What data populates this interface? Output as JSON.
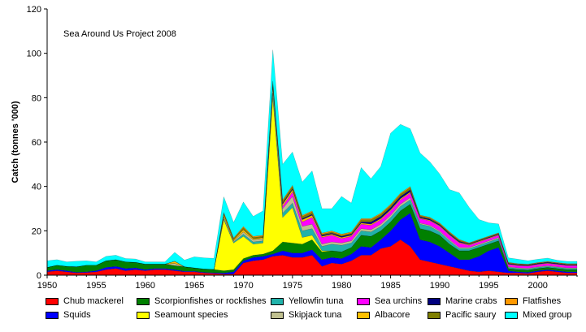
{
  "chart_data": {
    "type": "area",
    "stacked": true,
    "annotation": "Sea Around Us Project 2008",
    "ylabel": "Catch (tonnes '000)",
    "xlabel": "",
    "xlim": [
      1950,
      2004
    ],
    "ylim": [
      0,
      120
    ],
    "x_ticks": [
      1950,
      1955,
      1960,
      1965,
      1970,
      1975,
      1980,
      1985,
      1990,
      1995,
      2000
    ],
    "y_ticks": [
      0,
      20,
      40,
      60,
      80,
      100,
      120
    ],
    "grid": false,
    "legend_position": "bottom",
    "x": [
      1950,
      1951,
      1952,
      1953,
      1954,
      1955,
      1956,
      1957,
      1958,
      1959,
      1960,
      1961,
      1962,
      1963,
      1964,
      1965,
      1966,
      1967,
      1968,
      1969,
      1970,
      1971,
      1972,
      1973,
      1974,
      1975,
      1976,
      1977,
      1978,
      1979,
      1980,
      1981,
      1982,
      1983,
      1984,
      1985,
      1986,
      1987,
      1988,
      1989,
      1990,
      1991,
      1992,
      1993,
      1994,
      1995,
      1996,
      1997,
      1998,
      1999,
      2000,
      2001,
      2002,
      2003,
      2004
    ],
    "series": [
      {
        "name": "Chub mackerel",
        "color": "#ff0000",
        "values": [
          1.5,
          2,
          1.5,
          1,
          1.2,
          1.5,
          2.5,
          3,
          2,
          2.5,
          2,
          2.5,
          2.5,
          2,
          1.5,
          1.5,
          1,
          0.8,
          0.5,
          0.5,
          5.5,
          6.5,
          7,
          8.5,
          9,
          8,
          8,
          9,
          4,
          5.5,
          5,
          6.5,
          9,
          9,
          12,
          13,
          16,
          13,
          7,
          6,
          5,
          4,
          3,
          2,
          1.5,
          2,
          1.5,
          1,
          1,
          0.8,
          1.5,
          2,
          1.5,
          1,
          1
        ]
      },
      {
        "name": "Squids",
        "color": "#0000ff",
        "values": [
          0.5,
          0.5,
          0.5,
          0.3,
          0.3,
          0.5,
          1,
          1,
          1,
          0.8,
          0.5,
          0.5,
          0.5,
          0.5,
          0.3,
          0.3,
          0.3,
          0.3,
          0.5,
          1,
          1,
          1.5,
          1.5,
          1,
          2,
          2,
          2,
          2.5,
          3,
          2.5,
          2.5,
          3,
          4,
          3.5,
          4,
          7,
          9,
          15,
          9,
          9,
          8,
          6,
          4,
          5,
          7,
          9,
          11,
          1,
          0.5,
          0.5,
          0.5,
          0.5,
          0.5,
          0.5,
          0.5
        ]
      },
      {
        "name": "Scorpionfishes or rockfishes",
        "color": "#008000",
        "values": [
          1.5,
          2,
          2,
          2.5,
          3,
          2.5,
          3,
          3,
          3,
          2.5,
          2.5,
          2,
          2,
          1.8,
          2,
          1.5,
          1.5,
          1.5,
          1,
          1,
          1,
          1,
          1,
          1.5,
          4,
          4.5,
          4,
          4.5,
          3.5,
          3,
          3,
          3,
          5,
          5,
          4,
          4,
          4,
          4,
          5,
          5,
          5,
          4,
          4,
          4,
          4,
          3,
          3,
          1,
          1,
          1,
          1,
          1,
          1,
          1,
          1
        ]
      },
      {
        "name": "Seamount species",
        "color": "#ffff00",
        "values": [
          0,
          0,
          0,
          0,
          0,
          0,
          0,
          0,
          0,
          0,
          0,
          0,
          0,
          0,
          0,
          0,
          0,
          0,
          23,
          12,
          10,
          5,
          5,
          69,
          11,
          16,
          3,
          2,
          0.5,
          0,
          0,
          0,
          0,
          0,
          0,
          0,
          0,
          0,
          0,
          0,
          0,
          0,
          0,
          0,
          0,
          0,
          0,
          0,
          0,
          0,
          0,
          0,
          0,
          0,
          0
        ]
      },
      {
        "name": "Yellowfin tuna",
        "color": "#20b2aa",
        "values": [
          0,
          0,
          0,
          0,
          0,
          0,
          0,
          0,
          0,
          0,
          0,
          0,
          0,
          0,
          0,
          0,
          0,
          0,
          0.5,
          0.5,
          1,
          1,
          1,
          2,
          2,
          2,
          3,
          3,
          2,
          3,
          3,
          2,
          2,
          2,
          2,
          2,
          2,
          2,
          2,
          2,
          1.5,
          1.5,
          1,
          1,
          1,
          1,
          1,
          0.5,
          0.5,
          0.5,
          0.5,
          0.5,
          0.5,
          0.5,
          0.5
        ]
      },
      {
        "name": "Skipjack tuna",
        "color": "#c0c090",
        "values": [
          0,
          0,
          0,
          0,
          0,
          0,
          0,
          0,
          0,
          0,
          0,
          0,
          0,
          1,
          0,
          0,
          0,
          0,
          1,
          0.5,
          1,
          1,
          1,
          3,
          2,
          3,
          2,
          2,
          1,
          1,
          1,
          1,
          1,
          1,
          1,
          1,
          1,
          1,
          0.5,
          0.5,
          0.5,
          0.5,
          0.5,
          0.5,
          0.5,
          0.5,
          0.5,
          0.3,
          0.3,
          0.3,
          0.3,
          0.3,
          0.3,
          0.3,
          0.3
        ]
      },
      {
        "name": "Sea urchins",
        "color": "#ff00ff",
        "values": [
          0,
          0,
          0,
          0,
          0,
          0,
          0,
          0,
          0,
          0,
          0,
          0,
          0,
          0,
          0,
          0,
          0,
          0,
          0,
          0,
          0,
          0,
          0,
          0,
          1,
          2,
          2,
          3,
          3,
          3,
          2,
          2,
          2,
          2,
          2,
          2,
          2,
          2,
          2,
          2,
          2,
          2,
          2,
          1,
          1,
          1,
          1,
          1,
          1,
          1,
          1,
          1,
          1,
          1,
          1
        ]
      },
      {
        "name": "Albacore",
        "color": "#ffc000",
        "values": [
          0,
          0,
          0,
          0,
          0,
          0,
          0,
          0,
          0,
          0,
          0,
          0,
          0,
          1,
          0,
          0,
          0,
          0,
          1,
          0.5,
          1,
          0.5,
          0.5,
          1,
          1,
          1,
          1,
          1,
          0.5,
          0.5,
          0.5,
          0.5,
          0.5,
          0.5,
          0.5,
          0.5,
          0.5,
          0.5,
          0.3,
          0.3,
          0.3,
          0.3,
          0.3,
          0.3,
          0.3,
          0.3,
          0.3,
          0.2,
          0.2,
          0.2,
          0.2,
          0.2,
          0.2,
          0.2,
          0.2
        ]
      },
      {
        "name": "Marine crabs",
        "color": "#000080",
        "values": [
          0,
          0,
          0,
          0,
          0,
          0,
          0,
          0,
          0,
          0,
          0,
          0,
          0,
          0,
          0,
          0,
          0,
          0,
          0,
          0,
          0,
          0,
          0,
          0,
          0.5,
          0.5,
          0.5,
          0.5,
          0.5,
          0.5,
          0.5,
          0.5,
          0.5,
          1,
          1,
          1,
          1,
          1,
          0.5,
          0.5,
          0.5,
          0.5,
          0.5,
          0.3,
          0.3,
          0.3,
          0.3,
          0.3,
          0.3,
          0.3,
          0.3,
          0.3,
          0.3,
          0.3,
          0.3
        ]
      },
      {
        "name": "Pacific saury",
        "color": "#808000",
        "values": [
          0,
          0,
          0,
          0,
          0,
          0,
          0,
          0,
          0,
          0,
          0,
          0,
          0,
          0,
          0,
          0,
          0,
          0,
          0.5,
          0.5,
          1,
          0.5,
          0.5,
          1,
          1,
          1,
          1,
          1,
          0.5,
          0.5,
          0.5,
          0.5,
          1,
          1,
          1,
          1,
          1,
          1,
          0.5,
          0.5,
          0.5,
          0.5,
          0.5,
          0.3,
          0.3,
          0.3,
          0.3,
          0.3,
          0.2,
          0.2,
          0.2,
          0.2,
          0.2,
          0.2,
          0.2
        ]
      },
      {
        "name": "Flatfishes",
        "color": "#ff9900",
        "values": [
          0,
          0,
          0,
          0,
          0,
          0,
          0,
          0,
          0,
          0,
          0,
          0,
          0,
          0,
          0,
          0,
          0,
          0,
          0.3,
          0.3,
          0.5,
          0.5,
          0.5,
          0.5,
          0.5,
          0.5,
          0.5,
          0.5,
          0.5,
          0.5,
          0.5,
          0.5,
          0.5,
          0.5,
          0.5,
          0.5,
          0.5,
          0.5,
          0.3,
          0.3,
          0.3,
          0.3,
          0.3,
          0.2,
          0.2,
          0.2,
          0.2,
          0.2,
          0.2,
          0.2,
          0.2,
          0.2,
          0.2,
          0.2,
          0.2
        ]
      },
      {
        "name": "Mixed group",
        "color": "#00ffff",
        "values": [
          3,
          2.5,
          2,
          2.5,
          2,
          1.5,
          2,
          2,
          1.5,
          1.5,
          1,
          1,
          1,
          4,
          3,
          5,
          5,
          5,
          7,
          7,
          11,
          9,
          11,
          14,
          16,
          15,
          15,
          18,
          11,
          10,
          17,
          13,
          23,
          18,
          21,
          32,
          31,
          26,
          28,
          25,
          22,
          19,
          21,
          16,
          9,
          6,
          4,
          2,
          2,
          1.5,
          1.5,
          1.5,
          1,
          1,
          1
        ]
      }
    ]
  }
}
